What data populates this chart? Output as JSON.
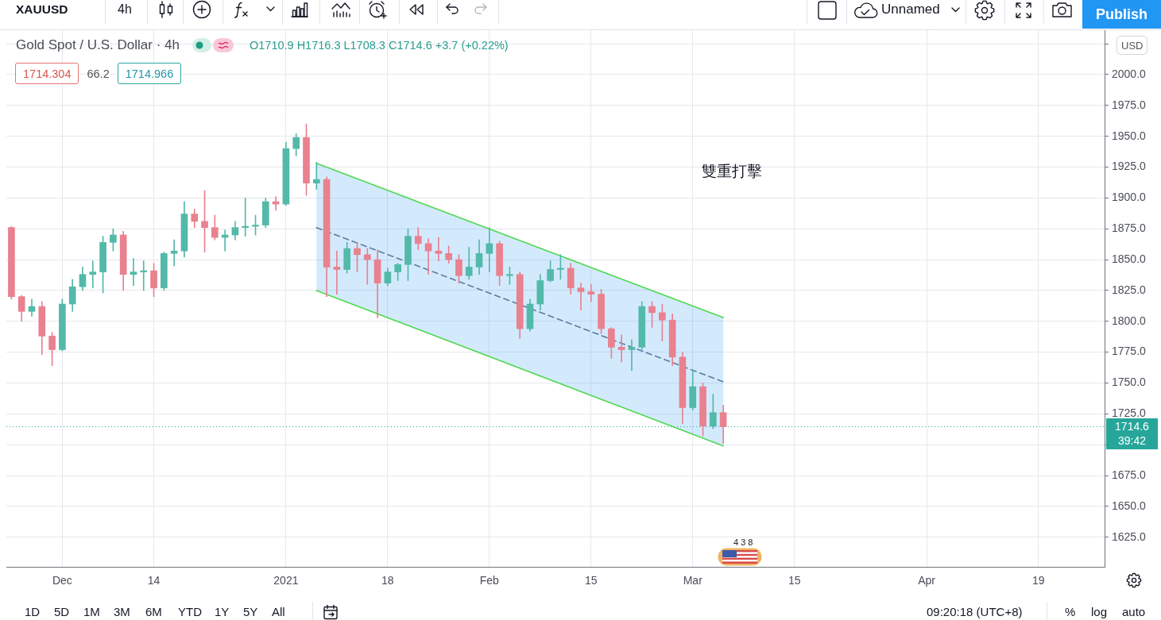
{
  "chart_data": {
    "type": "candlestick",
    "title": "Gold Spot / U.S. Dollar · 4h",
    "ylabel": "USD",
    "categories": [
      null,
      null,
      null,
      null,
      null,
      "Dec",
      null,
      null,
      null,
      null,
      null,
      null,
      null,
      null,
      "14",
      null,
      null,
      null,
      null,
      null,
      null,
      null,
      null,
      null,
      null,
      null,
      null,
      "2021",
      null,
      null,
      null,
      null,
      null,
      null,
      null,
      null,
      null,
      "18",
      null,
      null,
      null,
      null,
      null,
      null,
      null,
      null,
      null,
      "Feb",
      null,
      null,
      null,
      null,
      null,
      null,
      null,
      null,
      null,
      "15",
      null,
      null,
      null,
      null,
      null,
      null,
      null,
      null,
      null,
      "Mar",
      null,
      null,
      null,
      null,
      null,
      null,
      null,
      null,
      null,
      "15",
      null,
      null,
      null,
      null,
      null,
      null,
      null,
      null,
      null,
      null,
      null,
      null,
      "Apr",
      null,
      null,
      null,
      null,
      null,
      null,
      null,
      null,
      null,
      null,
      "19",
      null,
      null,
      null,
      null,
      null,
      null
    ],
    "ohlc": [
      [
        1876,
        1877,
        1818,
        1820
      ],
      [
        1820,
        1821,
        1800,
        1808
      ],
      [
        1808,
        1818,
        1804,
        1812
      ],
      [
        1812,
        1816,
        1773,
        1788
      ],
      [
        1788,
        1791,
        1764,
        1777
      ],
      [
        1777,
        1818,
        1776,
        1814
      ],
      [
        1814,
        1834,
        1808,
        1828
      ],
      [
        1828,
        1844,
        1825,
        1838
      ],
      [
        1838,
        1849,
        1827,
        1840
      ],
      [
        1840,
        1869,
        1823,
        1864
      ],
      [
        1864,
        1875,
        1857,
        1870
      ],
      [
        1870,
        1873,
        1825,
        1838
      ],
      [
        1838,
        1851,
        1829,
        1840
      ],
      [
        1840,
        1849,
        1825,
        1841
      ],
      [
        1841,
        1847,
        1820,
        1827
      ],
      [
        1827,
        1856,
        1825,
        1855
      ],
      [
        1855,
        1866,
        1845,
        1857
      ],
      [
        1857,
        1897,
        1852,
        1887
      ],
      [
        1887,
        1891,
        1876,
        1881
      ],
      [
        1881,
        1906,
        1856,
        1876
      ],
      [
        1876,
        1886,
        1866,
        1868
      ],
      [
        1868,
        1874,
        1857,
        1870
      ],
      [
        1870,
        1881,
        1866,
        1876
      ],
      [
        1876,
        1900,
        1869,
        1877
      ],
      [
        1877,
        1886,
        1870,
        1878
      ],
      [
        1878,
        1900,
        1876,
        1897
      ],
      [
        1897,
        1901,
        1890,
        1895
      ],
      [
        1895,
        1945,
        1894,
        1940
      ],
      [
        1940,
        1952,
        1934,
        1949
      ],
      [
        1949,
        1960,
        1902,
        1912
      ],
      [
        1912,
        1929,
        1907,
        1915
      ],
      [
        1915,
        1917,
        1820,
        1844
      ],
      [
        1844,
        1857,
        1822,
        1842
      ],
      [
        1842,
        1864,
        1839,
        1859
      ],
      [
        1859,
        1864,
        1840,
        1854
      ],
      [
        1854,
        1859,
        1830,
        1850
      ],
      [
        1850,
        1858,
        1803,
        1831
      ],
      [
        1831,
        1843,
        1829,
        1840
      ],
      [
        1840,
        1847,
        1833,
        1846
      ],
      [
        1846,
        1875,
        1833,
        1869
      ],
      [
        1869,
        1876,
        1858,
        1863
      ],
      [
        1863,
        1867,
        1838,
        1857
      ],
      [
        1857,
        1868,
        1849,
        1855
      ],
      [
        1855,
        1861,
        1847,
        1850
      ],
      [
        1850,
        1854,
        1831,
        1837
      ],
      [
        1837,
        1860,
        1834,
        1844
      ],
      [
        1844,
        1866,
        1838,
        1855
      ],
      [
        1855,
        1876,
        1840,
        1863
      ],
      [
        1863,
        1865,
        1829,
        1837
      ],
      [
        1837,
        1844,
        1830,
        1838
      ],
      [
        1838,
        1840,
        1786,
        1794
      ],
      [
        1794,
        1818,
        1792,
        1814
      ],
      [
        1814,
        1838,
        1809,
        1833
      ],
      [
        1833,
        1849,
        1832,
        1842
      ],
      [
        1842,
        1854,
        1834,
        1843
      ],
      [
        1843,
        1847,
        1822,
        1827
      ],
      [
        1827,
        1831,
        1809,
        1824
      ],
      [
        1824,
        1830,
        1816,
        1822
      ],
      [
        1822,
        1826,
        1790,
        1794
      ],
      [
        1794,
        1795,
        1770,
        1779
      ],
      [
        1779,
        1789,
        1767,
        1777
      ],
      [
        1777,
        1785,
        1760,
        1779
      ],
      [
        1779,
        1816,
        1777,
        1812
      ],
      [
        1812,
        1816,
        1795,
        1807
      ],
      [
        1807,
        1814,
        1784,
        1801
      ],
      [
        1801,
        1806,
        1764,
        1771
      ],
      [
        1771,
        1775,
        1717,
        1730
      ],
      [
        1730,
        1760,
        1728,
        1747
      ],
      [
        1747,
        1750,
        1707,
        1715
      ],
      [
        1715,
        1741,
        1713,
        1726
      ],
      [
        1726,
        1732,
        1701,
        1714.6
      ],
      null,
      null,
      null,
      null,
      null,
      null,
      null,
      null,
      null,
      null,
      null,
      null,
      null,
      null,
      null,
      null,
      null,
      null,
      null,
      null,
      null,
      null,
      null,
      null,
      null,
      null,
      null,
      null,
      null,
      null,
      null,
      null,
      null,
      null,
      null,
      null,
      null
    ],
    "colors": [
      "#e9818f",
      "#e9818f",
      "#53b9a9",
      "#e9818f",
      "#e9818f",
      "#53b9a9",
      "#53b9a9",
      "#53b9a9",
      "#53b9a9",
      "#53b9a9",
      "#53b9a9",
      "#e9818f",
      "#53b9a9",
      "#53b9a9",
      "#e9818f",
      "#53b9a9",
      "#53b9a9",
      "#53b9a9",
      "#e9818f",
      "#e9818f",
      "#e9818f",
      "#53b9a9",
      "#53b9a9",
      "#53b9a9",
      "#53b9a9",
      "#53b9a9",
      "#e9818f",
      "#53b9a9",
      "#53b9a9",
      "#e9818f",
      "#53b9a9",
      "#e9818f",
      "#e9818f",
      "#53b9a9",
      "#e9818f",
      "#e9818f",
      "#e9818f",
      "#53b9a9",
      "#53b9a9",
      "#53b9a9",
      "#e9818f",
      "#e9818f",
      "#e9818f",
      "#e9818f",
      "#e9818f",
      "#53b9a9",
      "#53b9a9",
      "#53b9a9",
      "#e9818f",
      "#53b9a9",
      "#e9818f",
      "#53b9a9",
      "#53b9a9",
      "#53b9a9",
      "#53b9a9",
      "#e9818f",
      "#e9818f",
      "#e9818f",
      "#e9818f",
      "#e9818f",
      "#e9818f",
      "#53b9a9",
      "#53b9a9",
      "#e9818f",
      "#e9818f",
      "#e9818f",
      "#e9818f",
      "#53b9a9",
      "#e9818f",
      "#53b9a9",
      "#e9818f",
      null,
      null,
      null,
      null,
      null,
      null,
      null,
      null,
      null,
      null,
      null,
      null,
      null,
      null,
      null,
      null,
      null,
      null,
      null,
      null,
      null,
      null,
      null,
      null,
      null,
      null,
      null,
      null,
      null,
      null,
      null,
      null,
      null,
      null,
      null,
      null,
      null
    ],
    "series": [
      {
        "type": "line",
        "color": "#50d850",
        "values": [
          null,
          null,
          null,
          null,
          null,
          null,
          null,
          null,
          null,
          null,
          null,
          null,
          null,
          null,
          null,
          null,
          null,
          null,
          null,
          null,
          null,
          null,
          null,
          null,
          null,
          null,
          null,
          null,
          null,
          null,
          1928,
          null,
          null,
          null,
          null,
          null,
          null,
          null,
          null,
          null,
          null,
          null,
          null,
          null,
          null,
          null,
          null,
          null,
          null,
          null,
          null,
          null,
          null,
          null,
          null,
          null,
          null,
          null,
          null,
          null,
          null,
          null,
          null,
          null,
          null,
          null,
          null,
          null,
          null,
          null,
          1803,
          null,
          null,
          null,
          null,
          null,
          null,
          null,
          null,
          null,
          null,
          null,
          null,
          null,
          null,
          null,
          null,
          null,
          null,
          null,
          null,
          null,
          null,
          null,
          null,
          null,
          null,
          null,
          null,
          null,
          null,
          null,
          null,
          null,
          null,
          null,
          null,
          null
        ]
      },
      {
        "type": "line",
        "color": "#50d850",
        "values": [
          null,
          null,
          null,
          null,
          null,
          null,
          null,
          null,
          null,
          null,
          null,
          null,
          null,
          null,
          null,
          null,
          null,
          null,
          null,
          null,
          null,
          null,
          null,
          null,
          null,
          null,
          null,
          null,
          null,
          null,
          1825,
          null,
          null,
          null,
          null,
          null,
          null,
          null,
          null,
          null,
          null,
          null,
          null,
          null,
          null,
          null,
          null,
          null,
          null,
          null,
          null,
          null,
          null,
          null,
          null,
          null,
          null,
          null,
          null,
          null,
          null,
          null,
          null,
          null,
          null,
          null,
          null,
          null,
          null,
          null,
          1699,
          null,
          null,
          null,
          null,
          null,
          null,
          null,
          null,
          null,
          null,
          null,
          null,
          null,
          null,
          null,
          null,
          null,
          null,
          null,
          null,
          null,
          null,
          null,
          null,
          null,
          null,
          null,
          null,
          null,
          null,
          null,
          null,
          null,
          null,
          null,
          null,
          null
        ]
      },
      {
        "type": "line",
        "color": "#5a7d9c",
        "line_style": "dashed",
        "values": [
          null,
          null,
          null,
          null,
          null,
          null,
          null,
          null,
          null,
          null,
          null,
          null,
          null,
          null,
          null,
          null,
          null,
          null,
          null,
          null,
          null,
          null,
          null,
          null,
          null,
          null,
          null,
          null,
          null,
          null,
          1876,
          null,
          null,
          null,
          null,
          null,
          null,
          null,
          null,
          null,
          null,
          null,
          null,
          null,
          null,
          null,
          null,
          null,
          null,
          null,
          null,
          null,
          null,
          null,
          null,
          null,
          null,
          null,
          null,
          null,
          null,
          null,
          null,
          null,
          null,
          null,
          null,
          null,
          null,
          null,
          1751,
          null,
          null,
          null,
          null,
          null,
          null,
          null,
          null,
          null,
          null,
          null,
          null,
          null,
          null,
          null,
          null,
          null,
          null,
          null,
          null,
          null,
          null,
          null,
          null,
          null,
          null,
          null,
          null,
          null,
          null,
          null,
          null,
          null,
          null,
          null,
          null,
          null
        ],
        "upper": [
          null,
          null,
          null,
          null,
          null,
          null,
          null,
          null,
          null,
          null,
          null,
          null,
          null,
          null,
          null,
          null,
          null,
          null,
          null,
          null,
          null,
          null,
          null,
          null,
          null,
          null,
          null,
          null,
          null,
          null,
          1928,
          null,
          null,
          null,
          null,
          null,
          null,
          null,
          null,
          null,
          null,
          null,
          null,
          null,
          null,
          null,
          null,
          null,
          null,
          null,
          null,
          null,
          null,
          null,
          null,
          null,
          null,
          null,
          null,
          null,
          null,
          null,
          null,
          null,
          null,
          null,
          null,
          null,
          null,
          null,
          1803,
          null,
          null,
          null,
          null,
          null,
          null,
          null,
          null,
          null,
          null,
          null,
          null,
          null,
          null,
          null,
          null,
          null,
          null,
          null,
          null,
          null,
          null,
          null,
          null,
          null,
          null,
          null,
          null,
          null,
          null,
          null,
          null,
          null,
          null,
          null,
          null,
          null
        ],
        "lower": [
          null,
          null,
          null,
          null,
          null,
          null,
          null,
          null,
          null,
          null,
          null,
          null,
          null,
          null,
          null,
          null,
          null,
          null,
          null,
          null,
          null,
          null,
          null,
          null,
          null,
          null,
          null,
          null,
          null,
          null,
          1825,
          null,
          null,
          null,
          null,
          null,
          null,
          null,
          null,
          null,
          null,
          null,
          null,
          null,
          null,
          null,
          null,
          null,
          null,
          null,
          null,
          null,
          null,
          null,
          null,
          null,
          null,
          null,
          null,
          null,
          null,
          null,
          null,
          null,
          null,
          null,
          null,
          null,
          null,
          null,
          1699,
          null,
          null,
          null,
          null,
          null,
          null,
          null,
          null,
          null,
          null,
          null,
          null,
          null,
          null,
          null,
          null,
          null,
          null,
          null,
          null,
          null,
          null,
          null,
          null,
          null,
          null,
          null,
          null,
          null,
          null,
          null,
          null,
          null,
          null,
          null,
          null,
          null
        ]
      }
    ],
    "ylim": [
      1601,
      2036
    ],
    "yticks": [
      {
        "value": 1625,
        "label": "1625.0"
      },
      {
        "value": 1650,
        "label": "1650.0"
      },
      {
        "value": 1675,
        "label": "1675.0"
      },
      {
        "value": 1700,
        "label": null
      },
      {
        "value": 1725,
        "label": "1725.0"
      },
      {
        "value": 1750,
        "label": "1750.0"
      },
      {
        "value": 1775,
        "label": "1775.0"
      },
      {
        "value": 1800,
        "label": "1800.0"
      },
      {
        "value": 1825,
        "label": "1825.0"
      },
      {
        "value": 1850,
        "label": "1850.0"
      },
      {
        "value": 1875,
        "label": "1875.0"
      },
      {
        "value": 1900,
        "label": "1900.0"
      },
      {
        "value": 1925,
        "label": "1925.0"
      },
      {
        "value": 1950,
        "label": "1950.0"
      },
      {
        "value": 1975,
        "label": "1975.0"
      },
      {
        "value": 2000,
        "label": "2000.0"
      },
      {
        "value": 2025,
        "label": null
      }
    ],
    "grid": true,
    "ref_lines": [
      {
        "axis": "y",
        "value": 1714.6,
        "label": "1714.6",
        "color": "#26a69a",
        "line_style": "dotted"
      }
    ],
    "annotations": [
      "雙重打擊",
      "O1710.9 H1716.3 L1708.3 C1714.6 +3.7 (+0.22%)",
      "1714.304",
      "66.2",
      "1714.966",
      "39:42",
      "4 3 8",
      "XAUUSD",
      "4h",
      "Unnamed",
      "Publish",
      "1D",
      "5D",
      "1M",
      "3M",
      "6M",
      "YTD",
      "1Y",
      "5Y",
      "All",
      "09:20:18 (UTC+8)",
      "%",
      "log",
      "auto"
    ]
  }
}
